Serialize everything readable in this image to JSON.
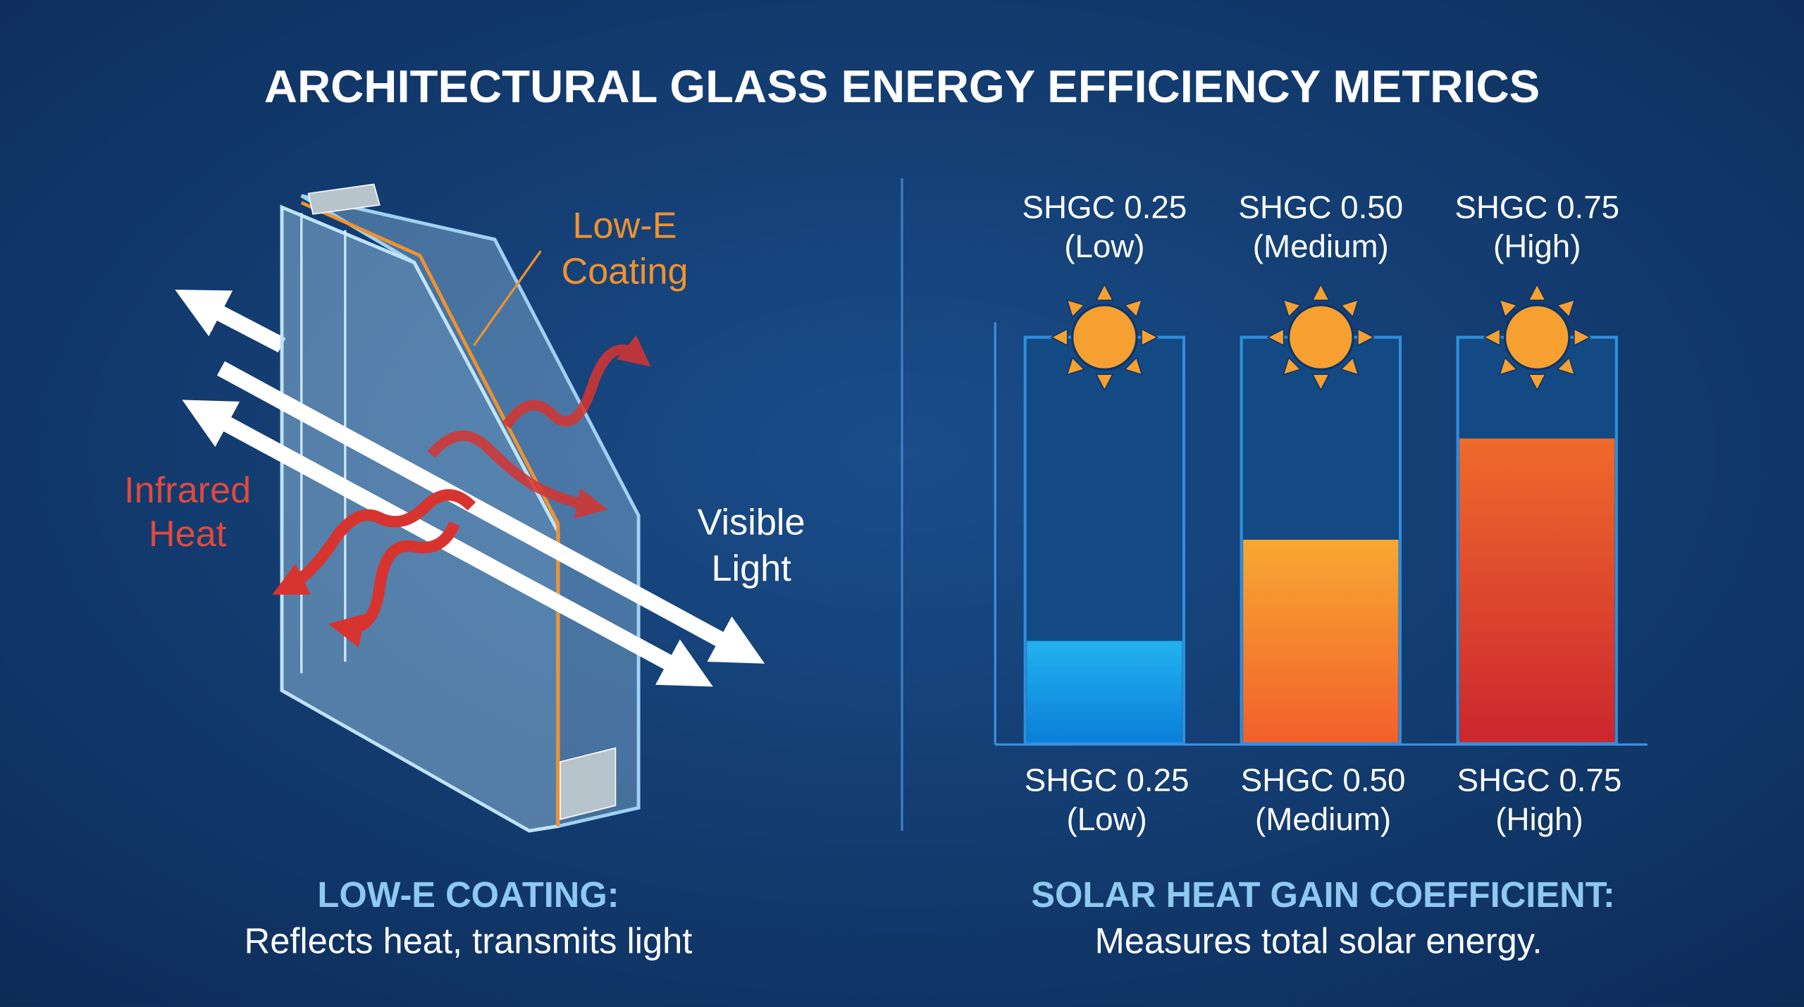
{
  "title": "ARCHITECTURAL GLASS ENERGY EFFICIENCY METRICS",
  "diagram": {
    "coating_label": [
      "Low-E",
      "Coating"
    ],
    "infrared_label": [
      "Infrared",
      "Heat"
    ],
    "visible_label": [
      "Visible",
      "Light"
    ],
    "caption_title": "LOW-E COATING:",
    "caption_text": "Reflects heat, transmits light"
  },
  "shgc": {
    "ylim": [
      0,
      1
    ],
    "bars": [
      {
        "top_label": [
          "SHGC 0.25",
          "(Low)"
        ],
        "bottom_label": [
          "SHGC 0.25",
          "(Low)"
        ],
        "value": 0.25,
        "colors": [
          "#23b2f0",
          "#0a7fd8"
        ]
      },
      {
        "top_label": [
          "SHGC 0.50",
          "(Medium)"
        ],
        "bottom_label": [
          "SHGC 0.50",
          "(Medium)"
        ],
        "value": 0.5,
        "colors": [
          "#f8a833",
          "#f2602a"
        ]
      },
      {
        "top_label": [
          "SHGC 0.75",
          "(High)"
        ],
        "bottom_label": [
          "SHGC 0.75",
          "(High)"
        ],
        "value": 0.75,
        "colors": [
          "#ef6a2c",
          "#cc262e"
        ]
      }
    ],
    "caption_title": "SOLAR HEAT GAIN COEFFICIENT:",
    "caption_text": "Measures total solar energy."
  }
}
